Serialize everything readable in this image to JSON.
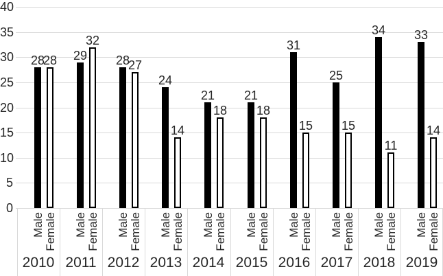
{
  "chart_data": {
    "type": "bar",
    "title": "",
    "categories": [
      "2010",
      "2011",
      "2012",
      "2013",
      "2014",
      "2015",
      "2016",
      "2017",
      "2018",
      "2019"
    ],
    "series": [
      {
        "name": "Male",
        "values": [
          28,
          29,
          28,
          24,
          21,
          21,
          31,
          25,
          34,
          33
        ],
        "style": "solid-black"
      },
      {
        "name": "Female",
        "values": [
          28,
          32,
          27,
          14,
          18,
          18,
          15,
          15,
          11,
          14
        ],
        "style": "white-black-outline"
      }
    ],
    "ylim": [
      0,
      40
    ],
    "ytick_step": 5,
    "ytick_labels": [
      "0",
      "5",
      "10",
      "15",
      "20",
      "25",
      "30",
      "35",
      "40"
    ],
    "grid": "horizontal",
    "legend": "none",
    "data_labels": true,
    "axis_label_rotation": "series labels rotated 90deg reading bottom-to-top",
    "colors": {
      "male_fill": "#000000",
      "female_fill": "#ffffff",
      "bar_outline": "#000000",
      "gridline": "#d9d9d9",
      "axis_border": "#d9d9d9",
      "text": "#262626",
      "background": "#ffffff"
    }
  }
}
